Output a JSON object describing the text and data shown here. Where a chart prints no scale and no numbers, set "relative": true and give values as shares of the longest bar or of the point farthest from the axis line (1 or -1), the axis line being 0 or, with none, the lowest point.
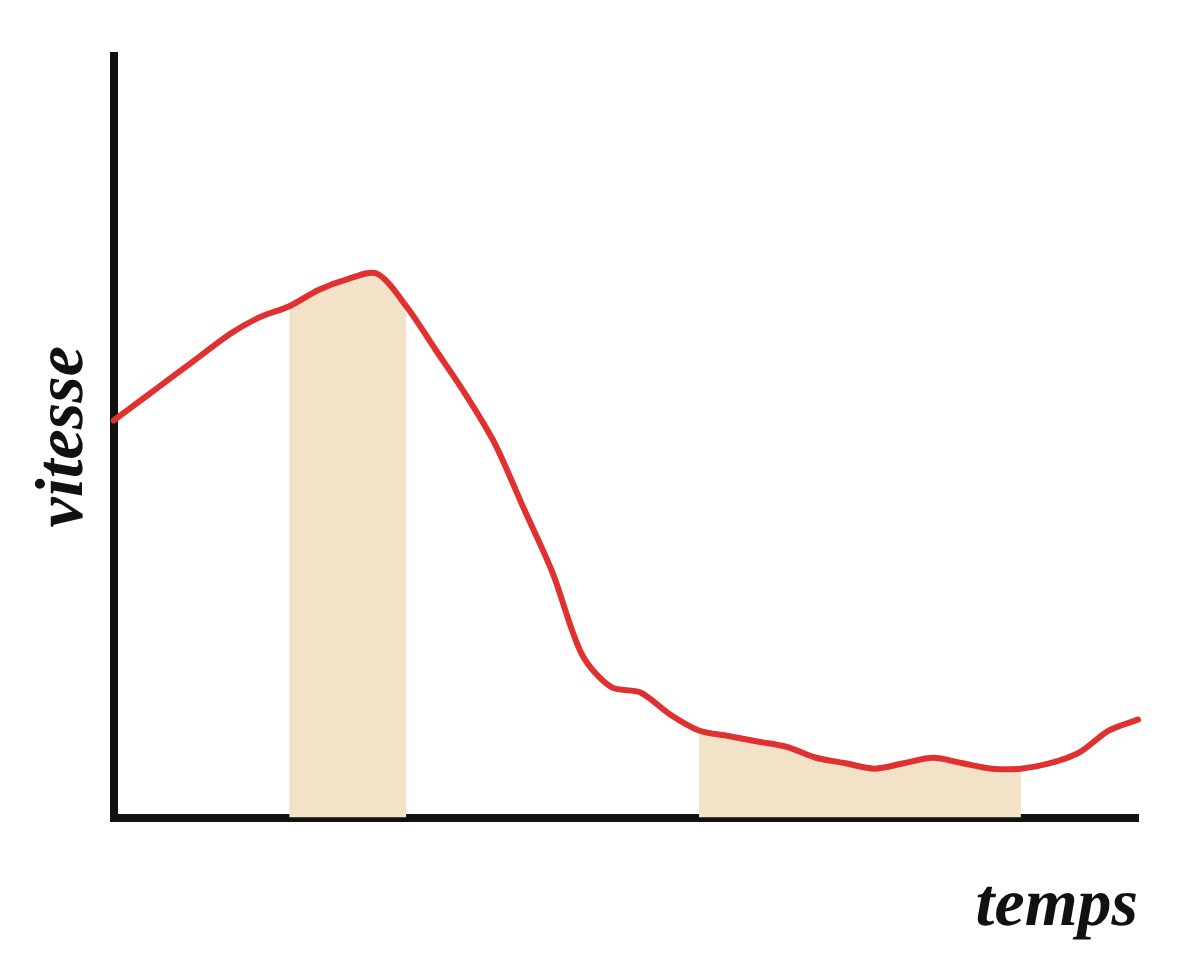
{
  "chart_data": {
    "type": "line",
    "relative": true,
    "xlabel": "temps",
    "ylabel": "vitesse",
    "legend": false,
    "grid": false,
    "marker": "none",
    "categories": [
      null,
      null,
      null,
      null,
      null,
      null,
      null,
      null,
      null,
      null,
      null,
      null,
      null,
      null,
      null,
      null,
      null,
      null,
      null,
      null,
      null,
      null,
      null,
      null,
      null,
      null,
      null,
      null,
      null,
      null,
      null,
      null,
      null,
      null,
      null,
      null
    ],
    "series": [
      {
        "color": "#e03030",
        "values": [
          0.73,
          0.77,
          0.81,
          0.85,
          0.89,
          0.92,
          0.94,
          0.97,
          0.99,
          1.0,
          0.94,
          0.86,
          0.78,
          0.69,
          0.57,
          0.45,
          0.3,
          0.24,
          0.23,
          0.19,
          0.16,
          0.15,
          0.14,
          0.13,
          0.11,
          0.1,
          0.09,
          0.1,
          0.11,
          0.1,
          0.09,
          0.09,
          0.1,
          0.12,
          0.16,
          0.18
        ]
      },
      {
        "type": "area",
        "color": "#f2e2c8",
        "values": [
          null,
          null,
          null,
          null,
          null,
          null,
          0.94,
          0.97,
          0.99,
          1.0,
          0.94,
          null,
          null,
          null,
          null,
          null,
          null,
          null,
          null,
          null,
          0.16,
          0.15,
          0.14,
          0.13,
          0.11,
          0.1,
          0.09,
          0.1,
          0.11,
          0.1,
          0.09,
          0.09,
          null,
          null,
          null,
          null
        ]
      }
    ]
  }
}
